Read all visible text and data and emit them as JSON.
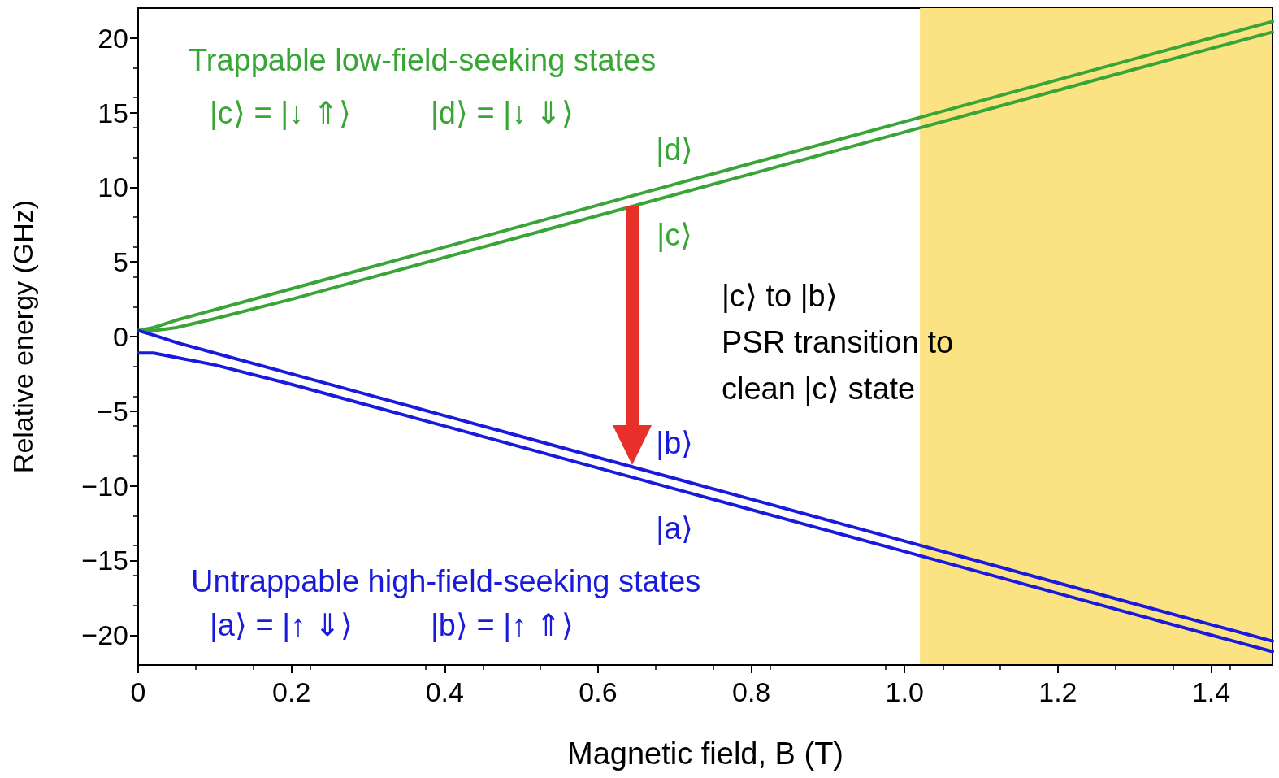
{
  "chart_data": {
    "type": "line",
    "xlabel": "Magnetic field, B (T)",
    "ylabel": "Relative energy (GHz)",
    "xlim": [
      0,
      1.48
    ],
    "ylim": [
      -22,
      22
    ],
    "xticks": [
      0,
      0.2,
      0.4,
      0.6,
      0.8,
      {
        "value": 1,
        "label": "1.0"
      },
      1.2,
      1.4
    ],
    "yticks": [
      {
        "value": -20,
        "label": "−20"
      },
      {
        "value": -15,
        "label": "−15"
      },
      {
        "value": -10,
        "label": "−10"
      },
      {
        "value": -5,
        "label": "−5"
      },
      0,
      5,
      10,
      15,
      20
    ],
    "x": [
      0,
      0.02,
      0.05,
      0.1,
      0.2,
      0.3,
      0.4,
      0.5,
      0.6,
      0.7,
      0.8,
      0.9,
      1.0,
      1.1,
      1.2,
      1.3,
      1.4,
      1.48
    ],
    "series": [
      {
        "name": "|d⟩",
        "color": "#3aa537",
        "values": [
          0.4,
          0.6,
          1.1,
          1.8,
          3.2,
          4.6,
          6.0,
          7.4,
          8.8,
          10.2,
          11.6,
          13.0,
          14.4,
          15.8,
          17.2,
          18.6,
          20.0,
          21.1
        ]
      },
      {
        "name": "|c⟩",
        "color": "#3aa537",
        "values": [
          0.4,
          0.4,
          0.6,
          1.2,
          2.5,
          3.9,
          5.3,
          6.7,
          8.1,
          9.5,
          10.9,
          12.3,
          13.7,
          15.1,
          16.5,
          17.9,
          19.3,
          20.4
        ]
      },
      {
        "name": "|b⟩",
        "color": "#1a1adc",
        "values": [
          0.4,
          0.1,
          -0.4,
          -1.1,
          -2.5,
          -3.9,
          -5.3,
          -6.7,
          -8.1,
          -9.5,
          -10.9,
          -12.3,
          -13.7,
          -15.1,
          -16.5,
          -17.9,
          -19.3,
          -20.4
        ]
      },
      {
        "name": "|a⟩",
        "color": "#1a1adc",
        "values": [
          -1.1,
          -1.1,
          -1.4,
          -1.9,
          -3.2,
          -4.6,
          -6.0,
          -7.4,
          -8.8,
          -10.2,
          -11.6,
          -13.0,
          -14.4,
          -15.8,
          -17.2,
          -18.6,
          -20.0,
          -21.1
        ]
      }
    ],
    "bands": [
      {
        "axis": "x",
        "from": 1.02,
        "to": 1.48,
        "color": "#fbe383"
      }
    ],
    "annotations": [
      "Trappable low-field-seeking states",
      "|c⟩ = |↓ ⇑⟩",
      "|d⟩ = |↓ ⇓⟩",
      "Untrappable high-field-seeking states",
      "|a⟩ = |↑ ⇓⟩",
      "|b⟩ = |↑ ⇑⟩",
      "|c⟩ to |b⟩\nPSR transition to\nclean |c⟩ state"
    ],
    "marker": "none",
    "line_style": "solid",
    "grid": false,
    "legend": false
  }
}
